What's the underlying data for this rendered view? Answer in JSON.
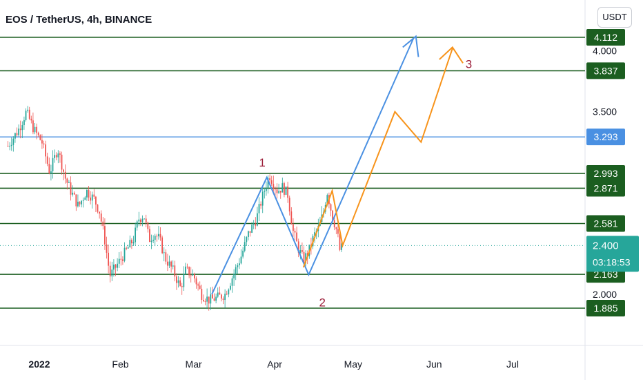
{
  "header": {
    "title": "EOS / TetherUS, 4h, BINANCE",
    "currency_button": "USDT"
  },
  "colors": {
    "green": "#1b5e20",
    "blue": "#4a90e2",
    "orange": "#f7931a",
    "bull": "#26a69a",
    "bear": "#ef5350",
    "wave_label": "#9c1f3a"
  },
  "chart_data": {
    "type": "candlestick",
    "title": "EOS / TetherUS, 4h, BINANCE",
    "ylim": [
      1.6,
      4.2
    ],
    "y_ticks": [
      "4.000",
      "3.500",
      "2.000"
    ],
    "x_ticks": [
      "2022",
      "Feb",
      "Mar",
      "Apr",
      "May",
      "Jun",
      "Jul"
    ],
    "horizontal_levels": [
      {
        "value": 4.112,
        "label": "4.112",
        "color": "green"
      },
      {
        "value": 3.837,
        "label": "3.837",
        "color": "green"
      },
      {
        "value": 3.293,
        "label": "3.293",
        "color": "blue"
      },
      {
        "value": 2.993,
        "label": "2.993",
        "color": "green"
      },
      {
        "value": 2.871,
        "label": "2.871",
        "color": "green"
      },
      {
        "value": 2.581,
        "label": "2.581",
        "color": "green"
      },
      {
        "value": 2.163,
        "label": "2.163",
        "color": "green"
      },
      {
        "value": 1.885,
        "label": "1.885",
        "color": "green"
      }
    ],
    "current_price": {
      "value": 2.4,
      "label": "2.400",
      "countdown": "03:18:53"
    },
    "price_path": [
      [
        "2021-12-20",
        3.22
      ],
      [
        "2021-12-24",
        3.35
      ],
      [
        "2021-12-27",
        3.5
      ],
      [
        "2021-12-30",
        3.35
      ],
      [
        "2022-01-02",
        3.25
      ],
      [
        "2022-01-05",
        3.0
      ],
      [
        "2022-01-08",
        3.2
      ],
      [
        "2022-01-11",
        2.95
      ],
      [
        "2022-01-13",
        2.85
      ],
      [
        "2022-01-16",
        2.72
      ],
      [
        "2022-01-19",
        2.85
      ],
      [
        "2022-01-22",
        2.78
      ],
      [
        "2022-01-24",
        2.68
      ],
      [
        "2022-01-26",
        2.45
      ],
      [
        "2022-01-28",
        2.15
      ],
      [
        "2022-01-31",
        2.25
      ],
      [
        "2022-02-03",
        2.35
      ],
      [
        "2022-02-06",
        2.45
      ],
      [
        "2022-02-08",
        2.62
      ],
      [
        "2022-02-10",
        2.65
      ],
      [
        "2022-02-12",
        2.45
      ],
      [
        "2022-02-14",
        2.5
      ],
      [
        "2022-02-16",
        2.45
      ],
      [
        "2022-02-18",
        2.3
      ],
      [
        "2022-02-21",
        2.2
      ],
      [
        "2022-02-24",
        2.05
      ],
      [
        "2022-02-26",
        2.2
      ],
      [
        "2022-03-01",
        2.15
      ],
      [
        "2022-03-04",
        2.0
      ],
      [
        "2022-03-07",
        1.95
      ],
      [
        "2022-03-10",
        1.97
      ],
      [
        "2022-03-13",
        2.0
      ],
      [
        "2022-03-16",
        2.15
      ],
      [
        "2022-03-19",
        2.3
      ],
      [
        "2022-03-22",
        2.5
      ],
      [
        "2022-03-25",
        2.62
      ],
      [
        "2022-03-28",
        2.85
      ],
      [
        "2022-03-30",
        2.98
      ],
      [
        "2022-04-02",
        2.85
      ],
      [
        "2022-04-04",
        2.88
      ],
      [
        "2022-04-06",
        2.82
      ],
      [
        "2022-04-08",
        2.52
      ],
      [
        "2022-04-10",
        2.38
      ],
      [
        "2022-04-12",
        2.28
      ],
      [
        "2022-04-14",
        2.35
      ],
      [
        "2022-04-16",
        2.48
      ],
      [
        "2022-04-18",
        2.55
      ],
      [
        "2022-04-20",
        2.7
      ],
      [
        "2022-04-21",
        2.85
      ],
      [
        "2022-04-23",
        2.65
      ],
      [
        "2022-04-25",
        2.5
      ],
      [
        "2022-04-26",
        2.35
      ],
      [
        "2022-04-27",
        2.4
      ]
    ],
    "projections": [
      {
        "color": "blue",
        "points": [
          [
            "2022-03-08",
            2.0
          ],
          [
            "2022-03-29",
            2.96
          ],
          [
            "2022-04-14",
            2.16
          ],
          [
            "2022-05-24",
            4.1
          ]
        ],
        "arrow_head": [
          [
            "2022-05-20",
            4.03
          ],
          [
            "2022-05-25",
            4.12
          ],
          [
            "2022-05-26",
            3.95
          ]
        ]
      },
      {
        "color": "orange",
        "points": [
          [
            "2022-04-12",
            2.22
          ],
          [
            "2022-04-23",
            2.85
          ],
          [
            "2022-04-27",
            2.4
          ],
          [
            "2022-05-17",
            3.5
          ],
          [
            "2022-05-27",
            3.25
          ],
          [
            "2022-06-08",
            4.02
          ]
        ],
        "arrow_head": [
          [
            "2022-06-03",
            3.93
          ],
          [
            "2022-06-08",
            4.03
          ],
          [
            "2022-06-12",
            3.9
          ]
        ]
      }
    ],
    "wave_labels": [
      {
        "text": "1",
        "date": "2022-03-26",
        "price": 3.05
      },
      {
        "text": "2",
        "date": "2022-04-18",
        "price": 1.9
      },
      {
        "text": "3",
        "date": "2022-06-13",
        "price": 3.86
      }
    ]
  }
}
